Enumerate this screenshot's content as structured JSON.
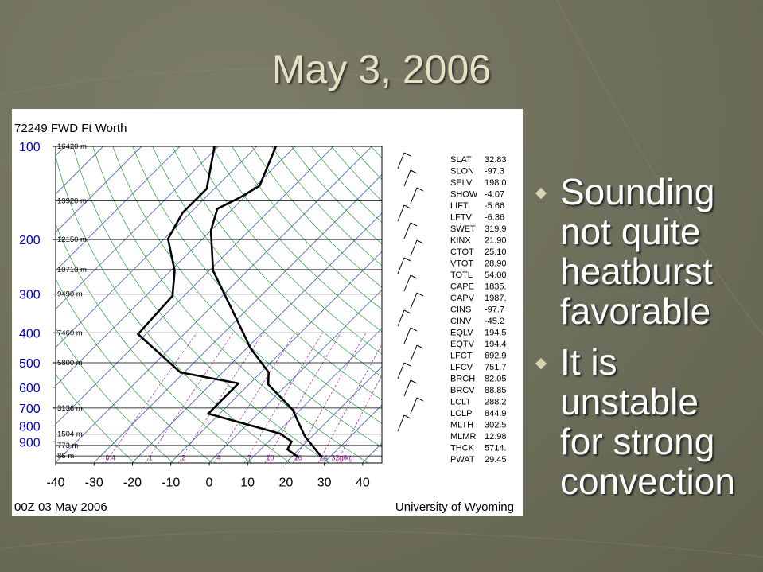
{
  "slide": {
    "title": "May 3, 2006",
    "bullets": [
      "Sounding not quite heatburst favorable",
      "It is unstable for strong convection"
    ]
  },
  "chart_data": {
    "type": "skewt",
    "title": "72249 FWD Ft Worth",
    "footer_left": "00Z 03 May 2006",
    "footer_right": "University of Wyoming",
    "xlim": [
      -40,
      45
    ],
    "xticks": [
      -40,
      -30,
      -20,
      -10,
      0,
      10,
      20,
      30,
      40
    ],
    "ylim": [
      1050,
      100
    ],
    "y_scale": "log",
    "yticks": [
      100,
      200,
      300,
      400,
      500,
      600,
      700,
      800,
      900
    ],
    "height_labels": [
      {
        "value": 100,
        "label": "16420 m"
      },
      {
        "value": 150,
        "label": "13920 m"
      },
      {
        "value": 200,
        "label": "12150 m"
      },
      {
        "value": 250,
        "label": "10710 m"
      },
      {
        "value": 300,
        "label": "9490 m"
      },
      {
        "value": 400,
        "label": "7460 m"
      },
      {
        "value": 500,
        "label": "5800 m"
      },
      {
        "value": 700,
        "label": "3136 m"
      },
      {
        "value": 850,
        "label": "1504 m"
      },
      {
        "value": 925,
        "label": "773 m"
      },
      {
        "value": 1000,
        "label": "86 m"
      }
    ],
    "mixing_ratio_ticks": [
      0.4,
      1,
      2,
      4,
      7,
      10,
      16,
      24,
      {
        "value": 32,
        "label": "32g/kg"
      }
    ],
    "series": [
      {
        "color": "#000000",
        "pressure": [
          1011,
          862,
          798,
          709,
          587,
          537,
          449,
          370,
          252,
          187,
          159,
          146,
          134,
          100
        ],
        "values": [
          28,
          18,
          14,
          8,
          -5,
          -8,
          -19,
          -29,
          -49,
          -60,
          -64,
          -61,
          -59,
          -65
        ]
      },
      {
        "color": "#000000",
        "pressure": [
          1011,
          953,
          898,
          847,
          730,
          680,
          583,
          537,
          404,
          304,
          252,
          199,
          164,
          137,
          100
        ],
        "values": [
          22,
          17,
          16,
          11,
          -13,
          -13,
          -13,
          -31,
          -52,
          -53,
          -59,
          -69,
          -72,
          -72,
          -81
        ]
      }
    ],
    "indices": [
      [
        "SLAT",
        "32.83"
      ],
      [
        "SLON",
        "-97.3"
      ],
      [
        "SELV",
        "198.0"
      ],
      [
        "SHOW",
        "-4.07"
      ],
      [
        "LIFT",
        "-5.66"
      ],
      [
        "LFTV",
        "-6.36"
      ],
      [
        "SWET",
        "319.9"
      ],
      [
        "KINX",
        "21.90"
      ],
      [
        "CTOT",
        "25.10"
      ],
      [
        "VTOT",
        "28.90"
      ],
      [
        "TOTL",
        "54.00"
      ],
      [
        "CAPE",
        "1835."
      ],
      [
        "CAPV",
        "1987."
      ],
      [
        "CINS",
        "-97.7"
      ],
      [
        "CINV",
        "-45.2"
      ],
      [
        "EQLV",
        "194.5"
      ],
      [
        "EQTV",
        "194.4"
      ],
      [
        "LFCT",
        "692.9"
      ],
      [
        "LFCV",
        "751.7"
      ],
      [
        "BRCH",
        "82.05"
      ],
      [
        "BRCV",
        "88.85"
      ],
      [
        "LCLT",
        "288.2"
      ],
      [
        "LCLP",
        "844.9"
      ],
      [
        "MLTH",
        "302.5"
      ],
      [
        "MLMR",
        "12.98"
      ],
      [
        "THCK",
        "5714."
      ],
      [
        "PWAT",
        "29.45"
      ]
    ]
  }
}
